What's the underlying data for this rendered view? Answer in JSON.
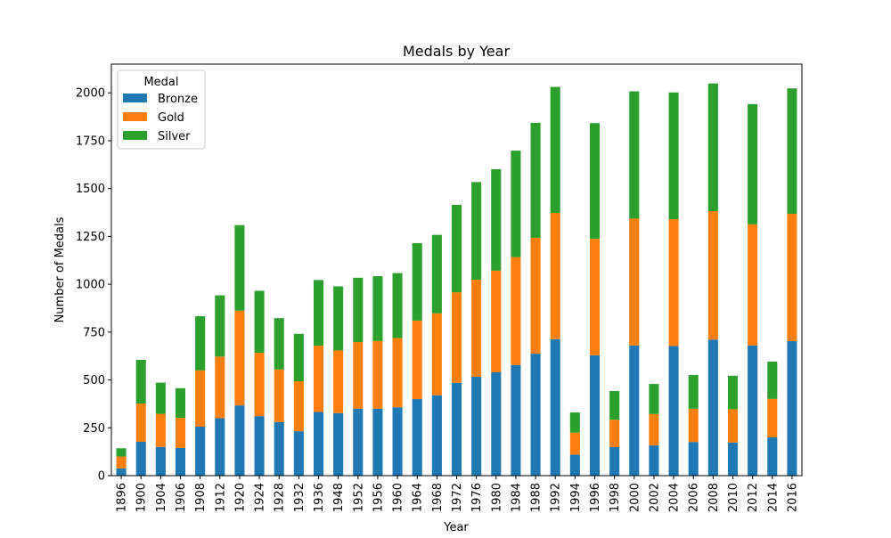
{
  "chart_data": {
    "type": "bar",
    "stacked": true,
    "title": "Medals by Year",
    "xlabel": "Year",
    "ylabel": "Number of Medals",
    "ylim": [
      0,
      2150
    ],
    "yticks": [
      0,
      250,
      500,
      750,
      1000,
      1250,
      1500,
      1750,
      2000
    ],
    "grid": false,
    "legend": {
      "title": "Medal",
      "placement": "top-left"
    },
    "categories": [
      "1896",
      "1900",
      "1904",
      "1906",
      "1908",
      "1912",
      "1920",
      "1924",
      "1928",
      "1932",
      "1936",
      "1948",
      "1952",
      "1956",
      "1960",
      "1964",
      "1968",
      "1972",
      "1976",
      "1980",
      "1984",
      "1988",
      "1992",
      "1994",
      "1996",
      "1998",
      "2000",
      "2002",
      "2004",
      "2006",
      "2008",
      "2010",
      "2012",
      "2014",
      "2016"
    ],
    "series": [
      {
        "name": "Bronze",
        "color": "#1f77b4",
        "values": [
          38,
          177,
          150,
          145,
          256,
          300,
          367,
          311,
          280,
          232,
          333,
          327,
          350,
          350,
          357,
          400,
          420,
          485,
          517,
          540,
          578,
          637,
          713,
          110,
          629,
          149,
          680,
          158,
          677,
          176,
          711,
          173,
          680,
          200,
          703
        ]
      },
      {
        "name": "Gold",
        "color": "#ff7f0e",
        "values": [
          62,
          200,
          173,
          157,
          294,
          322,
          495,
          331,
          275,
          261,
          346,
          327,
          348,
          354,
          362,
          410,
          428,
          473,
          507,
          531,
          564,
          606,
          660,
          115,
          608,
          143,
          663,
          164,
          663,
          174,
          671,
          174,
          633,
          201,
          665
        ]
      },
      {
        "name": "Silver",
        "color": "#2ca02c",
        "values": [
          43,
          228,
          163,
          155,
          283,
          320,
          447,
          324,
          268,
          248,
          343,
          335,
          336,
          338,
          339,
          405,
          410,
          457,
          510,
          530,
          556,
          600,
          658,
          105,
          605,
          150,
          665,
          157,
          662,
          176,
          667,
          175,
          628,
          195,
          655
        ]
      }
    ]
  }
}
